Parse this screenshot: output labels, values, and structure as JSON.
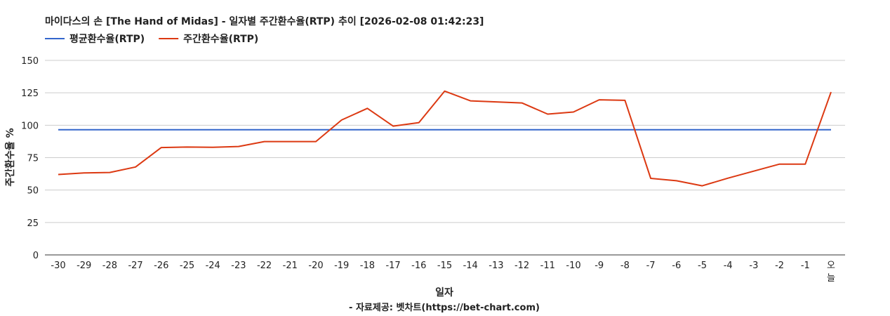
{
  "chart_data": {
    "type": "line",
    "title": "마이다스의 손 [The Hand of Midas] - 일자별 주간환수율(RTP) 추이 [2026-02-08 01:42:23]",
    "xlabel": "일자",
    "ylabel": "주간환수율 %",
    "footer": "- 자료제공: 벳차트(https://bet-chart.com)",
    "ylim": [
      0,
      150
    ],
    "yticks": [
      "0",
      "25",
      "50",
      "75",
      "100",
      "125",
      "150"
    ],
    "categories": [
      "-30",
      "-29",
      "-28",
      "-27",
      "-26",
      "-25",
      "-24",
      "-23",
      "-22",
      "-21",
      "-20",
      "-19",
      "-18",
      "-17",
      "-16",
      "-15",
      "-14",
      "-13",
      "-12",
      "-11",
      "-10",
      "-9",
      "-8",
      "-7",
      "-6",
      "-5",
      "-4",
      "-3",
      "-2",
      "-1",
      "오늘"
    ],
    "series": [
      {
        "name": "평균환수율(RTP)",
        "color": "#3366cc",
        "values": [
          96.5,
          96.5,
          96.5,
          96.5,
          96.5,
          96.5,
          96.5,
          96.5,
          96.5,
          96.5,
          96.5,
          96.5,
          96.5,
          96.5,
          96.5,
          96.5,
          96.5,
          96.5,
          96.5,
          96.5,
          96.5,
          96.5,
          96.5,
          96.5,
          96.5,
          96.5,
          96.5,
          96.5,
          96.5,
          96.5,
          96.5
        ]
      },
      {
        "name": "주간환수율(RTP)",
        "color": "#dc3912",
        "values": [
          62,
          63.2,
          63.6,
          67.8,
          82.8,
          83.2,
          83,
          83.6,
          87.4,
          87.4,
          87.4,
          104,
          113,
          99.3,
          102,
          126.3,
          118.8,
          118,
          117.2,
          108.6,
          110.2,
          119.6,
          119.2,
          59,
          57.2,
          53.3,
          59.2,
          64.6,
          70,
          70,
          125.6
        ]
      }
    ],
    "grid": true,
    "legend": "top-left"
  }
}
